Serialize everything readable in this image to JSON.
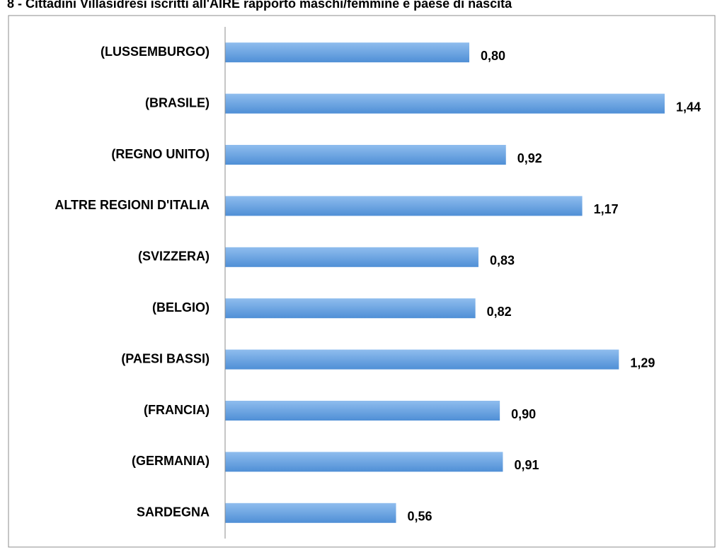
{
  "chart_data": {
    "type": "bar",
    "orientation": "horizontal",
    "title": "8 - Cittadini Villasidresi iscritti all'AIRE rapporto maschi/femmine e paese di nascita",
    "categories": [
      "(LUSSEMBURGO)",
      "(BRASILE)",
      "(REGNO UNITO)",
      "ALTRE REGIONI D'ITALIA",
      "(SVIZZERA)",
      "(BELGIO)",
      "(PAESI BASSI)",
      "(FRANCIA)",
      "(GERMANIA)",
      "SARDEGNA"
    ],
    "values": [
      0.8,
      1.44,
      0.92,
      1.17,
      0.83,
      0.82,
      1.29,
      0.9,
      0.91,
      0.56
    ],
    "value_labels": [
      "0,80",
      "1,44",
      "0,92",
      "1,17",
      "0,83",
      "0,82",
      "1,29",
      "0,90",
      "0,91",
      "0,56"
    ],
    "color": "#4f8fd6",
    "xlim": [
      0,
      1.6
    ]
  }
}
